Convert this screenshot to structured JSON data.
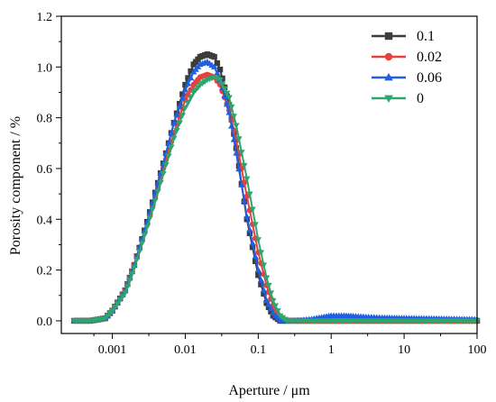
{
  "chart_data": {
    "type": "line",
    "title": "",
    "xlabel": "Aperture / μm",
    "ylabel": "Porosity component / %",
    "xscale": "log",
    "xlim": [
      0.0002,
      100
    ],
    "ylim": [
      -0.05,
      1.2
    ],
    "xticks": [
      {
        "value": 0.001,
        "label": "0.001"
      },
      {
        "value": 0.01,
        "label": "0.01"
      },
      {
        "value": 0.1,
        "label": "0.1"
      },
      {
        "value": 1,
        "label": "1"
      },
      {
        "value": 10,
        "label": "10"
      },
      {
        "value": 100,
        "label": "100"
      }
    ],
    "yticks": [
      {
        "value": 0.0,
        "label": "0.0"
      },
      {
        "value": 0.2,
        "label": "0.2"
      },
      {
        "value": 0.4,
        "label": "0.4"
      },
      {
        "value": 0.6,
        "label": "0.6"
      },
      {
        "value": 0.8,
        "label": "0.8"
      },
      {
        "value": 1.0,
        "label": "1.0"
      },
      {
        "value": 1.2,
        "label": "1.2"
      }
    ],
    "grid": false,
    "legend_position": "top-right",
    "series": [
      {
        "name": "0.1",
        "color": "#3c3c3c",
        "marker": "square",
        "x": [
          0.0003,
          0.0005,
          0.0008,
          0.001,
          0.0015,
          0.002,
          0.003,
          0.005,
          0.007,
          0.01,
          0.013,
          0.016,
          0.02,
          0.025,
          0.03,
          0.04,
          0.05,
          0.07,
          0.1,
          0.13,
          0.16,
          0.2,
          0.25,
          0.3,
          0.5,
          1,
          2,
          5,
          10,
          30,
          100
        ],
        "y": [
          0.0,
          0.0,
          0.01,
          0.04,
          0.12,
          0.22,
          0.39,
          0.62,
          0.78,
          0.93,
          1.01,
          1.04,
          1.05,
          1.04,
          0.99,
          0.85,
          0.68,
          0.4,
          0.18,
          0.07,
          0.02,
          0.0,
          0.0,
          0.0,
          0.0,
          0.0,
          0.0,
          0.0,
          0.0,
          0.0,
          0.0
        ]
      },
      {
        "name": "0.02",
        "color": "#e8403c",
        "marker": "circle",
        "x": [
          0.0003,
          0.0005,
          0.0008,
          0.001,
          0.0015,
          0.002,
          0.003,
          0.005,
          0.007,
          0.01,
          0.013,
          0.016,
          0.02,
          0.025,
          0.03,
          0.04,
          0.05,
          0.07,
          0.1,
          0.13,
          0.16,
          0.2,
          0.25,
          0.3,
          0.5,
          1,
          2,
          5,
          10,
          30,
          100
        ],
        "y": [
          0.0,
          0.0,
          0.01,
          0.04,
          0.12,
          0.22,
          0.38,
          0.6,
          0.74,
          0.87,
          0.93,
          0.96,
          0.97,
          0.96,
          0.93,
          0.83,
          0.71,
          0.49,
          0.27,
          0.14,
          0.06,
          0.01,
          0.0,
          0.0,
          0.0,
          0.0,
          0.0,
          0.0,
          0.0,
          0.0,
          0.0
        ]
      },
      {
        "name": "0.06",
        "color": "#1f5fe0",
        "marker": "triangle-up",
        "x": [
          0.0003,
          0.0005,
          0.0008,
          0.001,
          0.0015,
          0.002,
          0.003,
          0.005,
          0.007,
          0.01,
          0.013,
          0.016,
          0.02,
          0.025,
          0.03,
          0.04,
          0.05,
          0.07,
          0.1,
          0.13,
          0.16,
          0.2,
          0.25,
          0.3,
          0.5,
          0.8,
          1,
          1.5,
          2,
          3,
          5,
          10,
          30,
          100
        ],
        "y": [
          0.0,
          0.0,
          0.01,
          0.04,
          0.12,
          0.22,
          0.39,
          0.62,
          0.78,
          0.91,
          0.98,
          1.01,
          1.02,
          1.0,
          0.95,
          0.82,
          0.66,
          0.41,
          0.2,
          0.08,
          0.03,
          0.0,
          0.0,
          0.0,
          0.005,
          0.015,
          0.02,
          0.02,
          0.018,
          0.015,
          0.012,
          0.01,
          0.008,
          0.005
        ]
      },
      {
        "name": "0",
        "color": "#2ea56e",
        "marker": "triangle-down",
        "x": [
          0.0003,
          0.0005,
          0.0008,
          0.001,
          0.0015,
          0.002,
          0.003,
          0.005,
          0.007,
          0.01,
          0.013,
          0.016,
          0.02,
          0.025,
          0.03,
          0.04,
          0.05,
          0.07,
          0.1,
          0.13,
          0.16,
          0.2,
          0.25,
          0.3,
          0.5,
          1,
          2,
          5,
          10,
          30,
          100
        ],
        "y": [
          0.0,
          0.0,
          0.01,
          0.04,
          0.11,
          0.21,
          0.37,
          0.58,
          0.72,
          0.84,
          0.9,
          0.93,
          0.95,
          0.96,
          0.95,
          0.88,
          0.77,
          0.56,
          0.32,
          0.17,
          0.08,
          0.02,
          0.0,
          0.0,
          0.0,
          0.0,
          0.0,
          0.0,
          0.0,
          0.0,
          0.0
        ]
      }
    ]
  }
}
